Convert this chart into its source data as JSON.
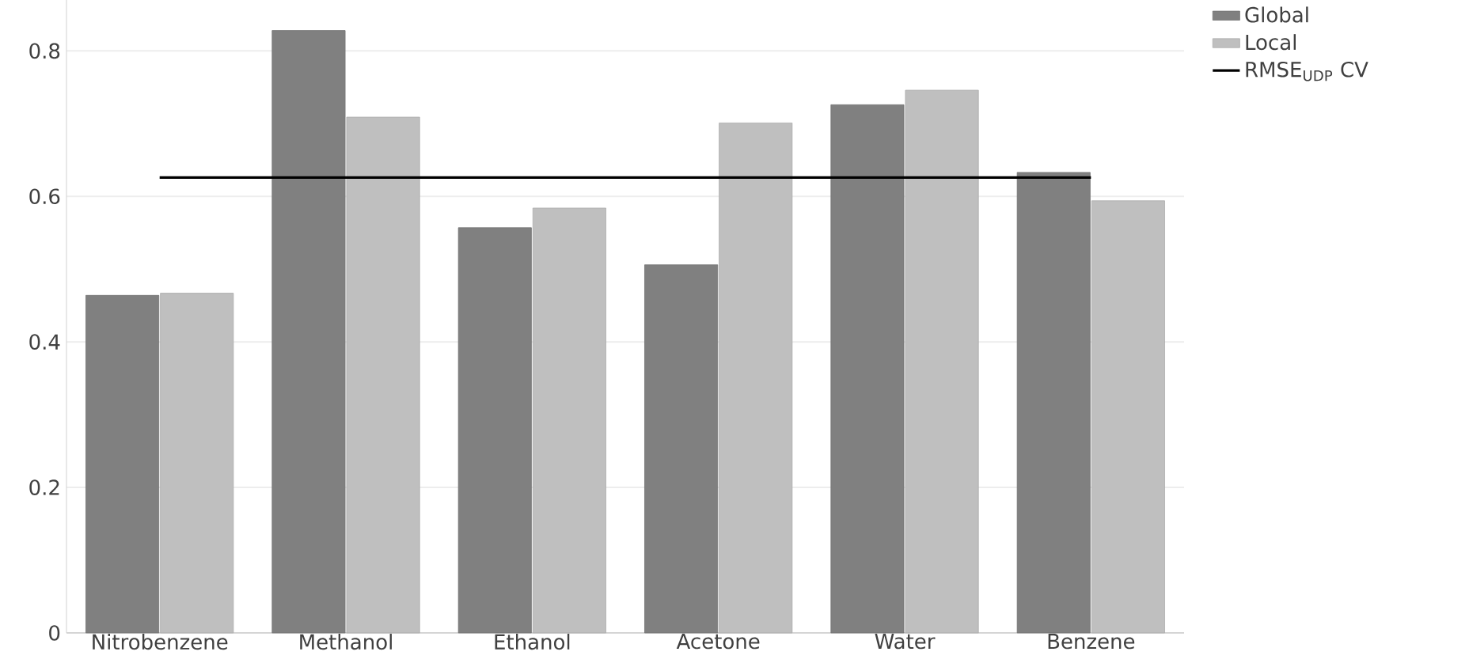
{
  "chart_data": {
    "type": "bar",
    "categories": [
      "Nitrobenzene",
      "Methanol",
      "Ethanol",
      "Acetone",
      "Water",
      "Benzene"
    ],
    "series": [
      {
        "name": "Global",
        "color": "#808080",
        "values": [
          0.464,
          0.828,
          0.557,
          0.506,
          0.726,
          0.633
        ]
      },
      {
        "name": "Local",
        "color": "#bfbfbf",
        "values": [
          0.467,
          0.709,
          0.584,
          0.701,
          0.746,
          0.594
        ]
      },
      {
        "name": "RMSE$_{UDP}$ CV",
        "type": "line",
        "color": "#000000",
        "values": [
          0.626,
          0.626,
          0.626,
          0.626,
          0.626,
          0.626
        ]
      }
    ],
    "ylim": [
      0,
      0.87
    ],
    "yticks": [
      0,
      0.2,
      0.4,
      0.6,
      0.8
    ],
    "grid": "y",
    "legend": "top right"
  }
}
